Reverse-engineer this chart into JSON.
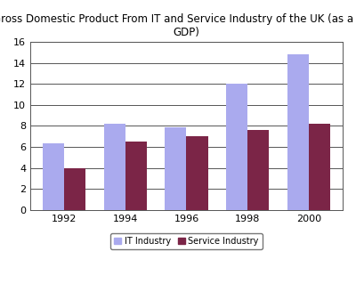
{
  "title": "Gross Domestic Product From IT and Service Industry of the UK (as a % of\nGDP)",
  "years": [
    "1992",
    "1994",
    "1996",
    "1998",
    "2000"
  ],
  "it_industry": [
    6.3,
    8.2,
    7.9,
    12.0,
    14.8
  ],
  "service_industry": [
    4.0,
    6.5,
    7.0,
    7.6,
    8.2
  ],
  "it_color": "#aaaaee",
  "service_color": "#7b2547",
  "ylim": [
    0,
    16
  ],
  "yticks": [
    0,
    2,
    4,
    6,
    8,
    10,
    12,
    14,
    16
  ],
  "bar_width": 0.35,
  "legend_labels": [
    "IT Industry",
    "Service Industry"
  ],
  "background_color": "#ffffff",
  "title_fontsize": 8.5,
  "tick_fontsize": 8,
  "legend_fontsize": 7
}
